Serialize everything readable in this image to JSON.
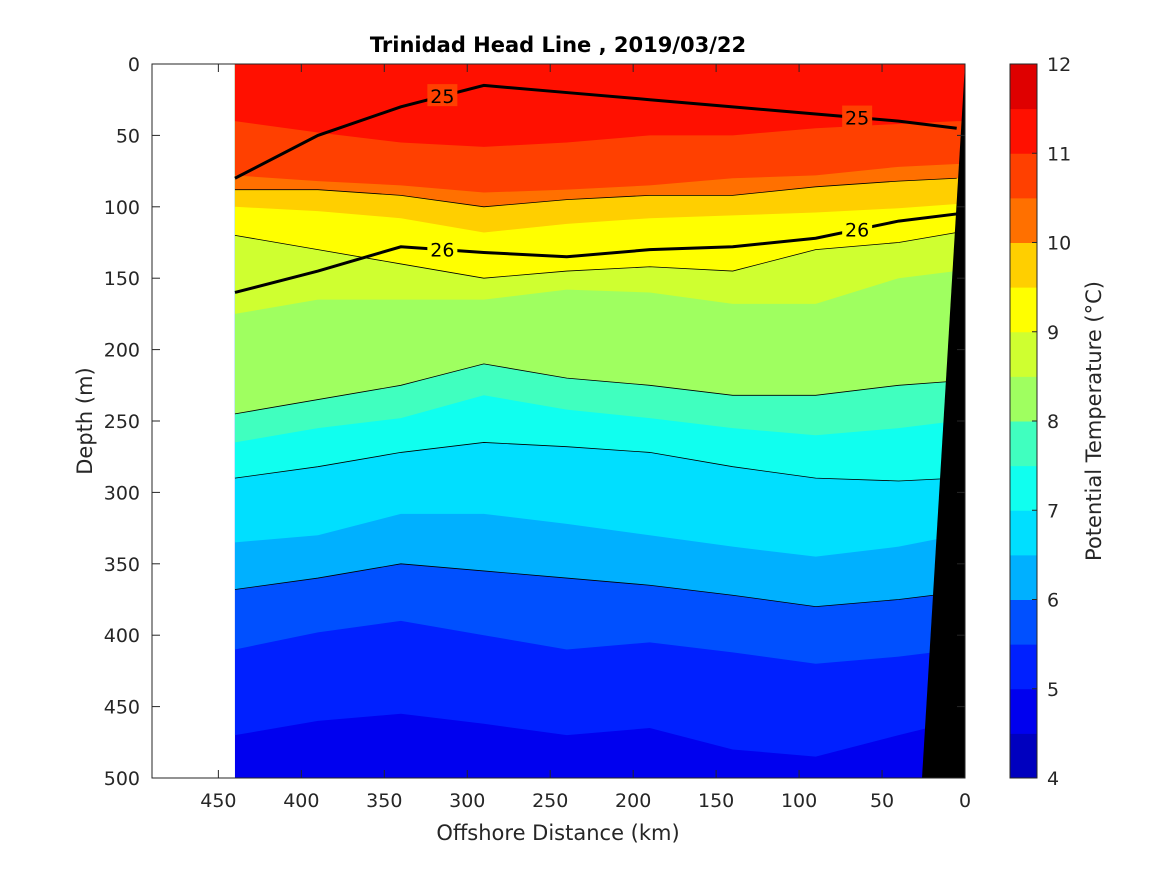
{
  "chart_data": {
    "type": "contourf",
    "title": "Trinidad Head Line , 2019/03/22",
    "xlabel": "Offshore Distance (km)",
    "ylabel": "Depth (m)",
    "colorbar_label": "Potential Temperature (°C)",
    "xlim": [
      490,
      0
    ],
    "ylim": [
      500,
      0
    ],
    "x_reversed": true,
    "y_reversed": true,
    "x_ticks": [
      450,
      400,
      350,
      300,
      250,
      200,
      150,
      100,
      50,
      0
    ],
    "y_ticks": [
      0,
      50,
      100,
      150,
      200,
      250,
      300,
      350,
      400,
      450,
      500
    ],
    "colorbar_ticks": [
      4,
      5,
      6,
      7,
      8,
      9,
      10,
      11,
      12
    ],
    "colorbar_levels": [
      4,
      4.5,
      5,
      5.5,
      6,
      6.5,
      7,
      7.5,
      8,
      8.5,
      9,
      9.5,
      10,
      10.5,
      11,
      11.5,
      12
    ],
    "colormap": [
      "#00008f",
      "#0000bf",
      "#0000ef",
      "#0020ff",
      "#0050ff",
      "#0080ff",
      "#00b0ff",
      "#00dfff",
      "#10ffef",
      "#40ffbf",
      "#70ff8f",
      "#9fff60",
      "#cfff30",
      "#ffff00",
      "#ffcf00",
      "#ff9f00",
      "#ff7000",
      "#ff4000",
      "#ff1000",
      "#df0000",
      "#af0000"
    ],
    "data_x_range": [
      440,
      0
    ],
    "isotherms": [
      {
        "temperature": 11.0,
        "depths": [
          40,
          48,
          55,
          58,
          55,
          50,
          50,
          45,
          42,
          40
        ]
      },
      {
        "temperature": 10.5,
        "depths": [
          78,
          82,
          85,
          90,
          88,
          85,
          80,
          78,
          72,
          70
        ]
      },
      {
        "temperature": 10.0,
        "depths": [
          88,
          88,
          92,
          100,
          95,
          92,
          92,
          86,
          82,
          80
        ]
      },
      {
        "temperature": 9.5,
        "depths": [
          100,
          103,
          108,
          118,
          112,
          108,
          106,
          104,
          101,
          98
        ]
      },
      {
        "temperature": 9.0,
        "depths": [
          120,
          130,
          140,
          150,
          145,
          142,
          145,
          130,
          125,
          118
        ]
      },
      {
        "temperature": 8.5,
        "depths": [
          175,
          165,
          165,
          165,
          158,
          160,
          168,
          168,
          150,
          145
        ]
      },
      {
        "temperature": 8.0,
        "depths": [
          245,
          235,
          225,
          210,
          220,
          225,
          232,
          232,
          225,
          222
        ]
      },
      {
        "temperature": 7.5,
        "depths": [
          265,
          255,
          248,
          232,
          242,
          248,
          255,
          260,
          255,
          250
        ]
      },
      {
        "temperature": 7.0,
        "depths": [
          290,
          282,
          272,
          265,
          268,
          272,
          282,
          290,
          292,
          290
        ]
      },
      {
        "temperature": 6.5,
        "depths": [
          335,
          330,
          315,
          315,
          322,
          330,
          338,
          345,
          338,
          330
        ]
      },
      {
        "temperature": 6.0,
        "depths": [
          368,
          360,
          350,
          355,
          360,
          365,
          372,
          380,
          375,
          370
        ]
      },
      {
        "temperature": 5.5,
        "depths": [
          410,
          398,
          390,
          400,
          410,
          405,
          412,
          420,
          415,
          410
        ]
      },
      {
        "temperature": 5.0,
        "depths": [
          470,
          460,
          455,
          462,
          470,
          465,
          480,
          485,
          470,
          460
        ]
      }
    ],
    "isotherm_x": [
      440,
      390,
      340,
      290,
      240,
      190,
      140,
      90,
      40,
      5
    ],
    "sigma_theta_contours": [
      {
        "label": "25",
        "depths": [
          80,
          50,
          30,
          15,
          20,
          25,
          30,
          35,
          40,
          45
        ]
      },
      {
        "label": "26",
        "depths": [
          160,
          145,
          128,
          132,
          135,
          130,
          128,
          122,
          110,
          105
        ]
      }
    ],
    "sigma_theta_x": [
      440,
      390,
      340,
      290,
      240,
      190,
      140,
      90,
      40,
      5
    ]
  }
}
